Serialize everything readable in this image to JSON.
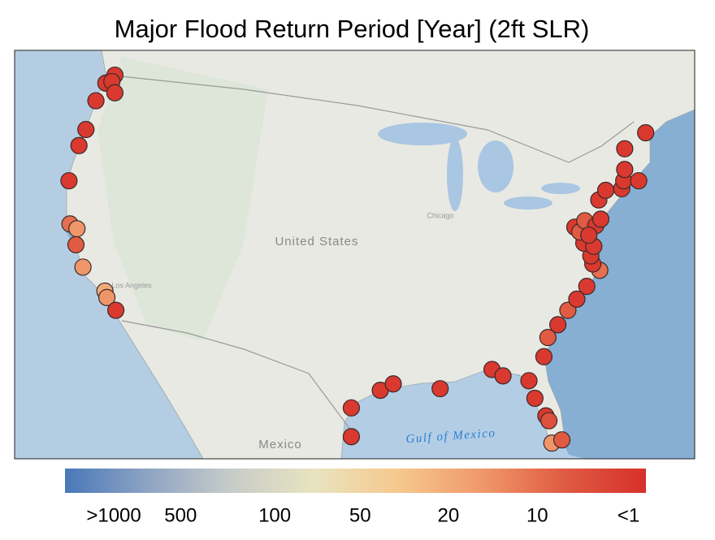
{
  "title": "Major Flood Return Period [Year] (2ft SLR)",
  "map_labels": [
    "United States",
    "Mexico",
    "Gulf of Mexico",
    "Chicago",
    "Los Angeles"
  ],
  "stations": {
    "lon": [
      -122.2,
      -123.1,
      -122.5,
      -122.2,
      -124.1,
      -125.1,
      -125.8,
      -126.8,
      -126.7,
      -126.0,
      -126.1,
      -125.4,
      -123.2,
      -123.0,
      -122.1,
      -98.5,
      -98.5,
      -95.6,
      -94.3,
      -89.6,
      -84.4,
      -83.3,
      -80.7,
      -80.1,
      -79.0,
      -78.7,
      -78.4,
      -77.4,
      -79.2,
      -78.8,
      -77.8,
      -76.8,
      -75.9,
      -74.9,
      -73.6,
      -74.3,
      -74.5,
      -75.2,
      -74.2,
      -76.1,
      -75.6,
      -75.1,
      -74.0,
      -73.5,
      -73.7,
      -73.0,
      -71.4,
      -71.2,
      -69.7,
      -71.1,
      -71.1,
      -69.0,
      -74.7
    ],
    "lat": [
      48.5,
      48.0,
      48.1,
      47.4,
      46.9,
      45.1,
      44.1,
      41.9,
      39.2,
      38.9,
      37.9,
      36.5,
      35.0,
      34.6,
      33.8,
      27.7,
      25.9,
      28.8,
      29.2,
      28.9,
      30.1,
      29.7,
      29.4,
      28.3,
      27.2,
      26.9,
      25.5,
      25.7,
      30.9,
      32.1,
      32.9,
      33.8,
      34.5,
      35.3,
      36.3,
      36.7,
      37.2,
      38.0,
      37.8,
      39.0,
      38.7,
      39.4,
      39.1,
      39.5,
      40.7,
      41.3,
      41.4,
      41.9,
      41.9,
      42.6,
      43.9,
      44.9,
      38.5
    ],
    "values": [
      1,
      1,
      1,
      1,
      1,
      1,
      1,
      1,
      10,
      15,
      5,
      15,
      20,
      15,
      1,
      1,
      1,
      1,
      1,
      1,
      1,
      1,
      1,
      1,
      1,
      3,
      15,
      5,
      1,
      5,
      1,
      5,
      1,
      1,
      10,
      1,
      1,
      1,
      1,
      1,
      5,
      5,
      1,
      1,
      1,
      1,
      1,
      1,
      1,
      1,
      1,
      1,
      1
    ]
  },
  "colorbar": {
    "colors": [
      "#4a78b8",
      "#8ea4c4",
      "#c7ccc8",
      "#e8e3c0",
      "#f6c98e",
      "#f09a6c",
      "#e05c43",
      "#d7302a"
    ],
    "ticks": [
      {
        "value": 1000,
        "label": ">1000"
      },
      500,
      100,
      50,
      20,
      10,
      {
        "value": 1,
        "label": "<1"
      }
    ]
  }
}
